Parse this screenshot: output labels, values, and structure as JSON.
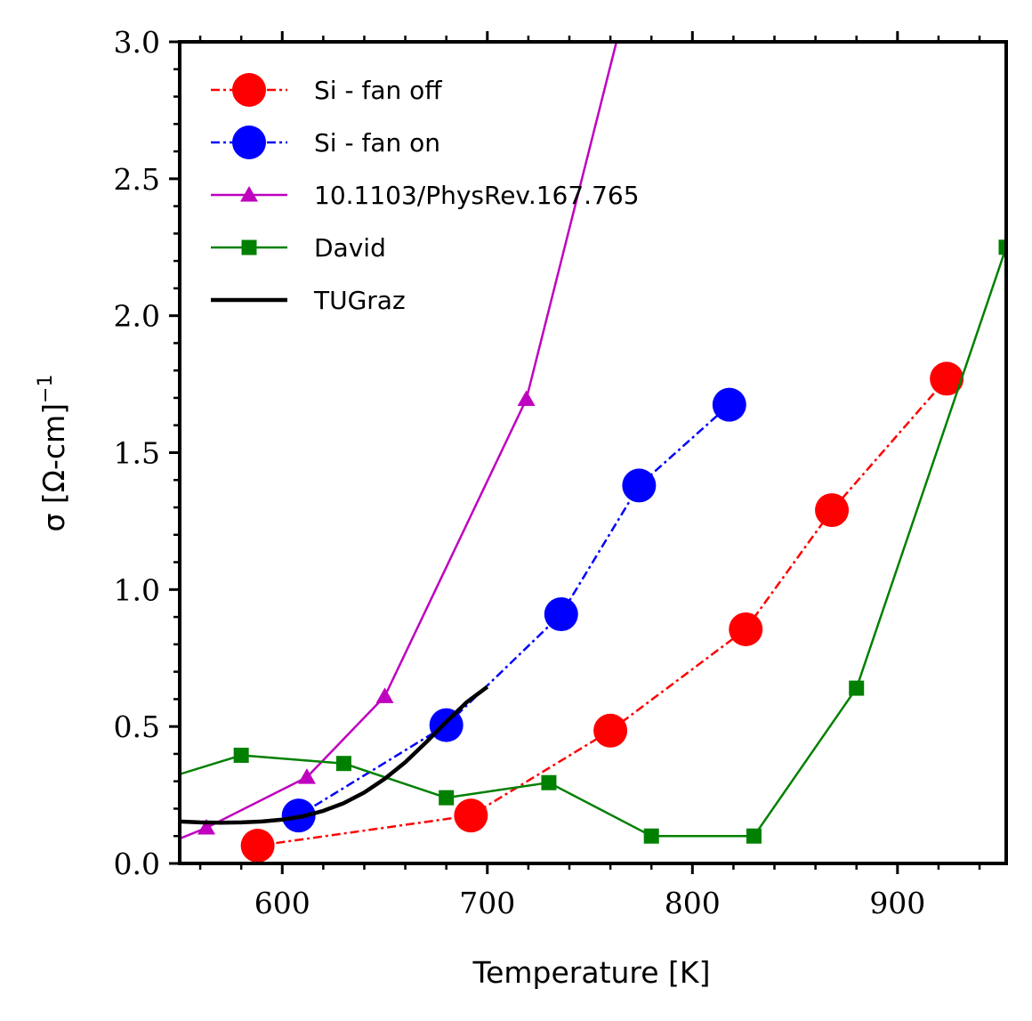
{
  "chart_data": {
    "type": "line",
    "xlabel": "Temperature [K]",
    "ylabel": "σ [Ω-cm]",
    "ylabel_superscript": "−1",
    "xlim": [
      550,
      953
    ],
    "ylim": [
      0.0,
      3.0
    ],
    "x_ticks": [
      600,
      700,
      800,
      900
    ],
    "x_tick_labels": [
      "600",
      "700",
      "800",
      "900"
    ],
    "x_minor_step": 20,
    "y_ticks": [
      0.0,
      0.5,
      1.0,
      1.5,
      2.0,
      2.5,
      3.0
    ],
    "y_tick_labels": [
      "0.0",
      "0.5",
      "1.0",
      "1.5",
      "2.0",
      "2.5",
      "3.0"
    ],
    "y_minor_step": 0.1,
    "grid": false,
    "legend_position": "top-left",
    "series": [
      {
        "name": "Si - fan off",
        "color": "#ff0000",
        "line_style": "dashdot",
        "marker": "circle",
        "x": [
          588,
          692,
          760,
          826,
          868,
          924
        ],
        "y": [
          0.065,
          0.175,
          0.485,
          0.855,
          1.29,
          1.77
        ]
      },
      {
        "name": "Si - fan on",
        "color": "#0000ff",
        "line_style": "dashdot",
        "marker": "circle",
        "x": [
          608,
          680,
          736,
          774,
          818
        ],
        "y": [
          0.175,
          0.505,
          0.91,
          1.38,
          1.675
        ]
      },
      {
        "name": "10.1103/PhysRev.167.765",
        "color": "#bf00bf",
        "line_style": "solid",
        "marker": "triangle",
        "x": [
          540,
          563,
          612,
          650,
          719,
          765
        ],
        "y": [
          0.06,
          0.13,
          0.315,
          0.61,
          1.695,
          3.06
        ]
      },
      {
        "name": "David",
        "color": "#008000",
        "line_style": "solid",
        "marker": "square",
        "x": [
          530,
          580,
          630,
          680,
          730,
          780,
          830,
          880,
          953
        ],
        "y": [
          0.28,
          0.395,
          0.365,
          0.24,
          0.295,
          0.1,
          0.1,
          0.64,
          2.25
        ]
      },
      {
        "name": "TUGraz",
        "color": "#000000",
        "line_style": "solid",
        "marker": "none",
        "x": [
          550,
          560,
          570,
          580,
          590,
          600,
          610,
          620,
          630,
          640,
          650,
          660,
          670,
          680,
          690,
          700
        ],
        "y": [
          0.153,
          0.15,
          0.149,
          0.15,
          0.153,
          0.16,
          0.172,
          0.192,
          0.22,
          0.259,
          0.309,
          0.37,
          0.441,
          0.517,
          0.589,
          0.645
        ]
      }
    ]
  }
}
